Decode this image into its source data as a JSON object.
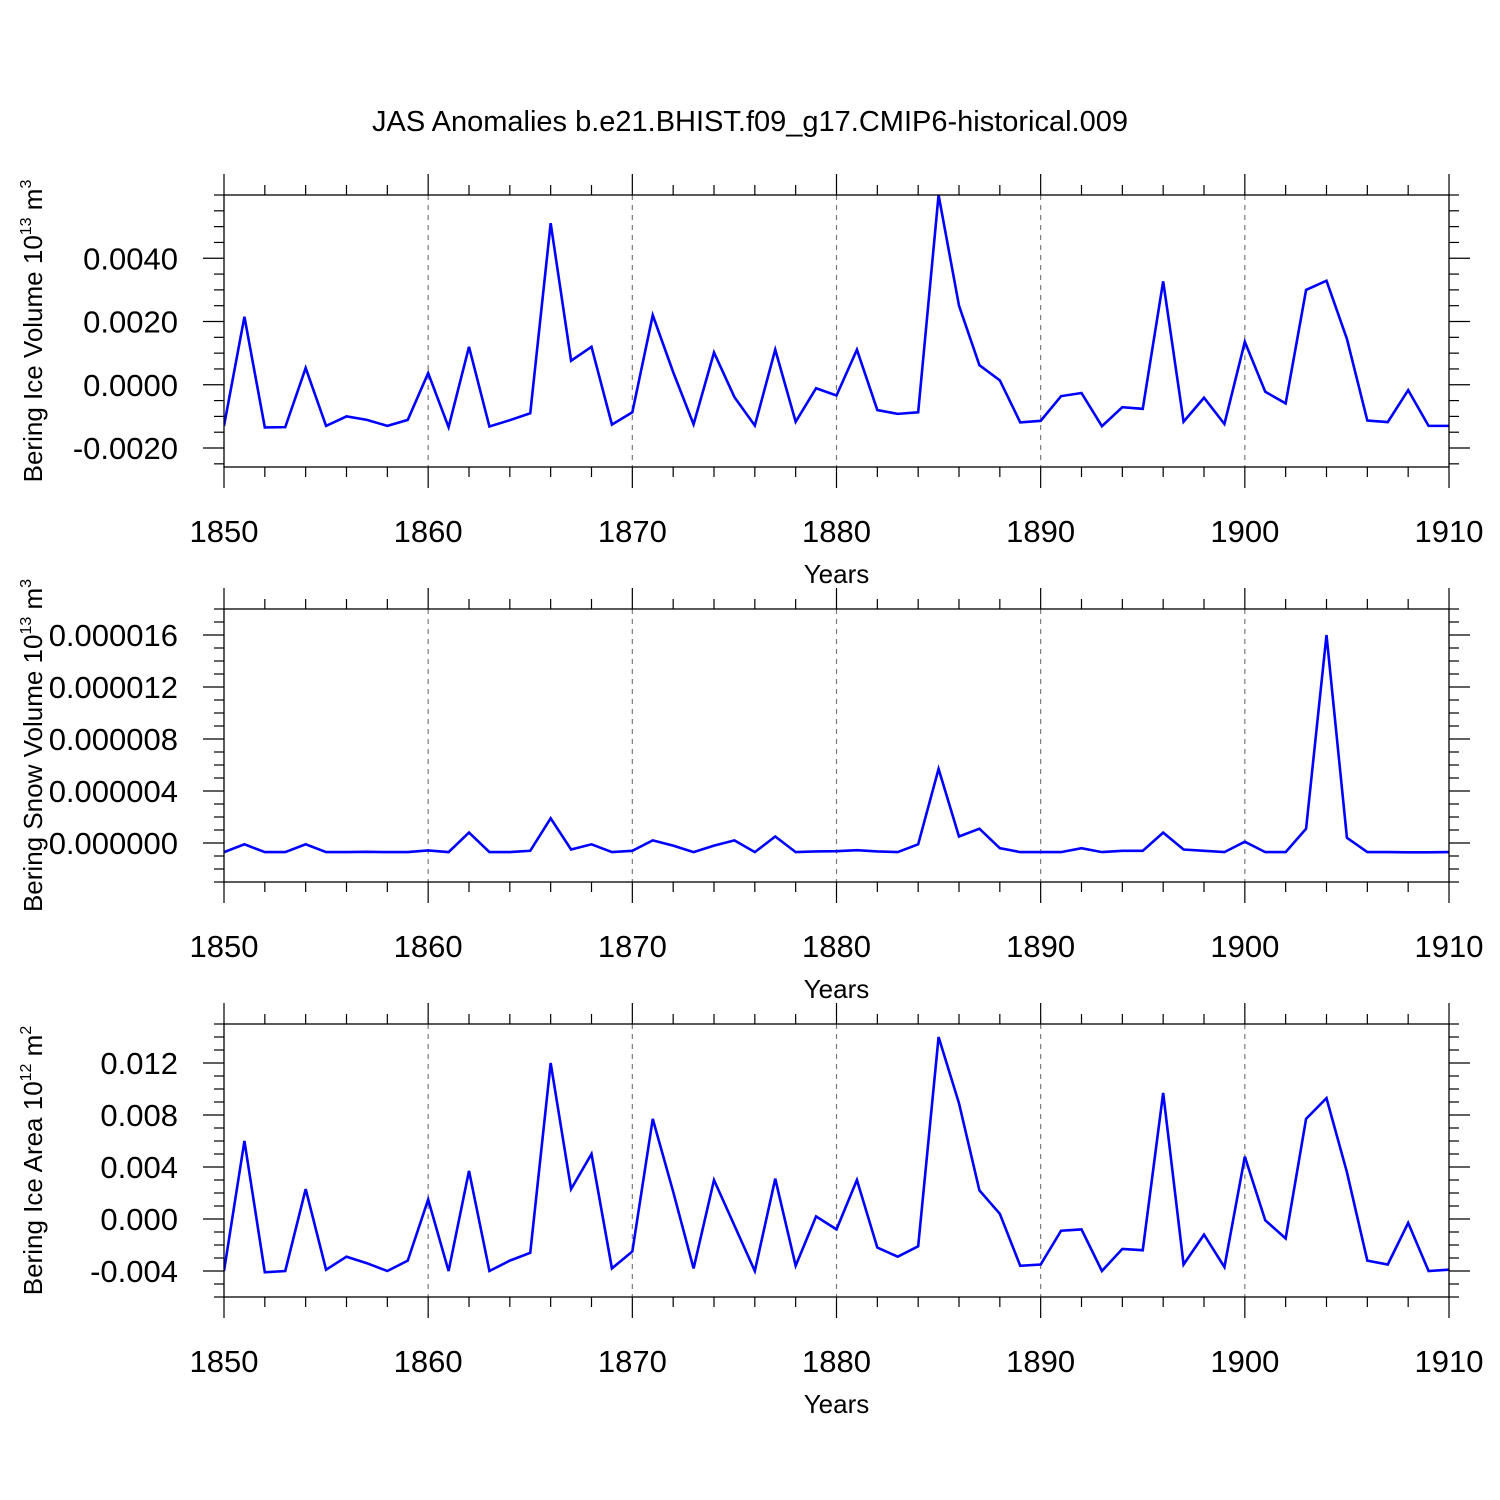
{
  "title": "JAS Anomalies b.e21.BHIST.f09_g17.CMIP6-historical.009",
  "colors": {
    "series": "#0000ff",
    "grid": "#7a7a7a",
    "axis": "#000000"
  },
  "chart_data": [
    {
      "type": "line",
      "xlabel": "Years",
      "ylabel": {
        "text": "Bering Ice Volume 10",
        "exponent": "13",
        "unit": " m",
        "unit_exponent": "3"
      },
      "xlim": [
        1850,
        1910
      ],
      "ylim": [
        -0.0026,
        0.006
      ],
      "x_ticks": [
        1850,
        1860,
        1870,
        1880,
        1890,
        1900,
        1910
      ],
      "x_tick_labels": [
        "1850",
        "1860",
        "1870",
        "1880",
        "1890",
        "1900",
        "1910"
      ],
      "y_ticks": [
        -0.002,
        0.0,
        0.002,
        0.004
      ],
      "y_tick_labels": [
        "-0.0020",
        "0.0000",
        "0.0020",
        "0.0040"
      ],
      "y_minor_step": 0.0005,
      "grid": "x-dashed",
      "series": [
        {
          "name": "Bering Ice Volume",
          "x_start": 1850,
          "x_step": 1,
          "values": [
            -0.0013,
            0.00215,
            -0.00135,
            -0.00134,
            0.00053,
            -0.0013,
            -0.001,
            -0.00111,
            -0.0013,
            -0.00111,
            0.00037,
            -0.00134,
            0.0012,
            -0.00132,
            -0.00112,
            -0.0009,
            0.00511,
            0.00076,
            0.0012,
            -0.00126,
            -0.00087,
            0.0022,
            0.0004,
            -0.00125,
            0.00102,
            -0.00039,
            -0.00129,
            0.00111,
            -0.00117,
            -0.00011,
            -0.00034,
            0.00111,
            -0.0008,
            -0.00092,
            -0.00087,
            0.006,
            0.0025,
            0.00062,
            0.00014,
            -0.00119,
            -0.00114,
            -0.00036,
            -0.00026,
            -0.00131,
            -0.00071,
            -0.00076,
            0.00327,
            -0.00117,
            -0.00041,
            -0.00124,
            0.00136,
            -0.00022,
            -0.00059,
            0.003,
            0.00329,
            0.00145,
            -0.00113,
            -0.00118,
            -0.00017,
            -0.0013,
            -0.0013
          ]
        }
      ]
    },
    {
      "type": "line",
      "xlabel": "Years",
      "ylabel": {
        "text": "Bering Snow Volume 10",
        "exponent": "13",
        "unit": " m",
        "unit_exponent": "3"
      },
      "xlim": [
        1850,
        1910
      ],
      "ylim": [
        -3e-06,
        1.8e-05
      ],
      "x_ticks": [
        1850,
        1860,
        1870,
        1880,
        1890,
        1900,
        1910
      ],
      "x_tick_labels": [
        "1850",
        "1860",
        "1870",
        "1880",
        "1890",
        "1900",
        "1910"
      ],
      "y_ticks": [
        0.0,
        4e-06,
        8e-06,
        1.2e-05,
        1.6e-05
      ],
      "y_tick_labels": [
        "0.000000",
        "0.000004",
        "0.000008",
        "0.000012",
        "0.000016"
      ],
      "y_minor_step": 1e-06,
      "grid": "x-dashed",
      "series": [
        {
          "name": "Bering Snow Volume",
          "x_start": 1850,
          "x_step": 1,
          "values": [
            -7e-07,
            -1e-07,
            -7e-07,
            -7e-07,
            -1e-07,
            -7e-07,
            -7e-07,
            -6.8e-07,
            -7e-07,
            -7e-07,
            -5.7e-07,
            -7e-07,
            8e-07,
            -7e-07,
            -7e-07,
            -6e-07,
            1.9e-06,
            -5e-07,
            -1e-07,
            -7e-07,
            -6e-07,
            2e-07,
            -2e-07,
            -7e-07,
            -2e-07,
            2e-07,
            -7e-07,
            5e-07,
            -7e-07,
            -6.5e-07,
            -6.3e-07,
            -5.5e-07,
            -6.5e-07,
            -7e-07,
            -1e-07,
            5.7e-06,
            5e-07,
            1.1e-06,
            -4e-07,
            -7e-07,
            -7e-07,
            -7e-07,
            -4e-07,
            -7e-07,
            -6e-07,
            -6e-07,
            8e-07,
            -5e-07,
            -6e-07,
            -7e-07,
            1e-07,
            -7e-07,
            -7e-07,
            1.1e-06,
            1.6e-05,
            4e-07,
            -7e-07,
            -7e-07,
            -7.2e-07,
            -7.2e-07,
            -7e-07
          ]
        }
      ]
    },
    {
      "type": "line",
      "xlabel": "Years",
      "ylabel": {
        "text": "Bering Ice Area 10",
        "exponent": "12",
        "unit": " m",
        "unit_exponent": "2"
      },
      "xlim": [
        1850,
        1910
      ],
      "ylim": [
        -0.006,
        0.015
      ],
      "x_ticks": [
        1850,
        1860,
        1870,
        1880,
        1890,
        1900,
        1910
      ],
      "x_tick_labels": [
        "1850",
        "1860",
        "1870",
        "1880",
        "1890",
        "1900",
        "1910"
      ],
      "y_ticks": [
        -0.004,
        0.0,
        0.004,
        0.008,
        0.012
      ],
      "y_tick_labels": [
        "-0.004",
        "0.000",
        "0.004",
        "0.008",
        "0.012"
      ],
      "y_minor_step": 0.001,
      "grid": "x-dashed",
      "series": [
        {
          "name": "Bering Ice Area",
          "x_start": 1850,
          "x_step": 1,
          "values": [
            -0.004,
            0.006,
            -0.0041,
            -0.004,
            0.0023,
            -0.0039,
            -0.0029,
            -0.0034,
            -0.004,
            -0.0032,
            0.0015,
            -0.004,
            0.0037,
            -0.004,
            -0.0032,
            -0.0026,
            0.012,
            0.0023,
            0.005,
            -0.0038,
            -0.0025,
            0.0077,
            0.0021,
            -0.0038,
            0.003,
            -0.0005,
            -0.004,
            0.0031,
            -0.0036,
            0.0002,
            -0.0008,
            0.003,
            -0.0022,
            -0.0029,
            -0.0021,
            0.014,
            0.0089,
            0.0022,
            0.0004,
            -0.0036,
            -0.0035,
            -0.0009,
            -0.0008,
            -0.004,
            -0.0023,
            -0.0024,
            0.0097,
            -0.0035,
            -0.0012,
            -0.0037,
            0.0048,
            -0.0001,
            -0.0015,
            0.0077,
            0.0093,
            0.0036,
            -0.0032,
            -0.0035,
            -0.0003,
            -0.004,
            -0.0039
          ]
        }
      ]
    }
  ]
}
